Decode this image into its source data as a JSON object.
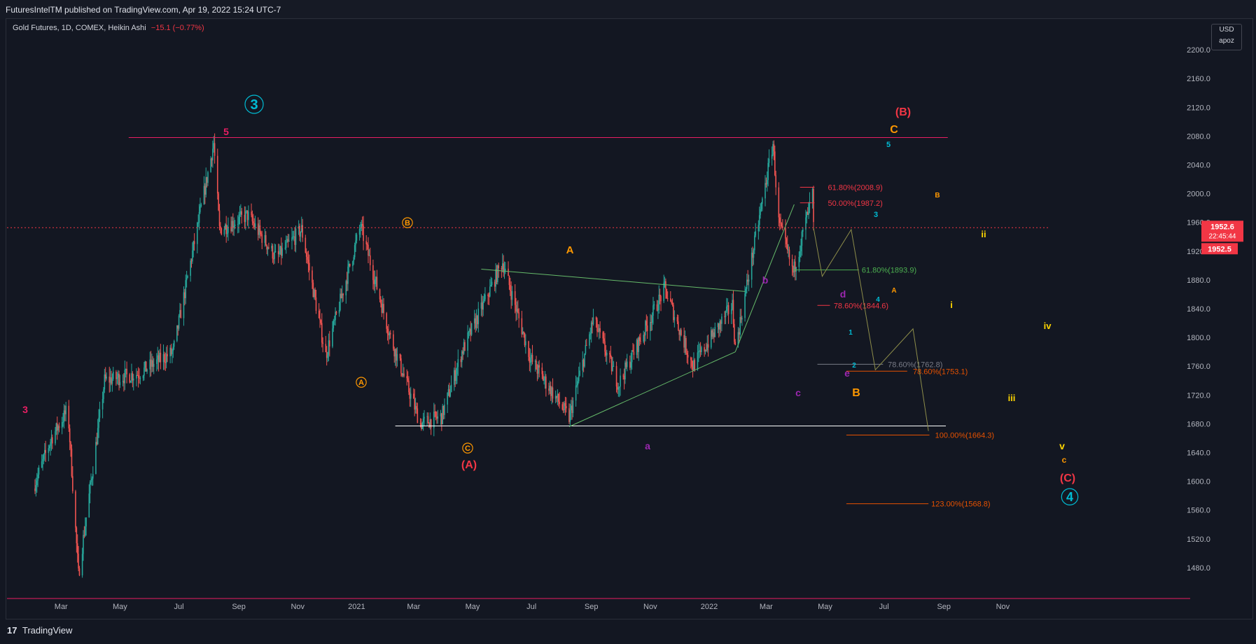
{
  "header": {
    "text": "FuturesIntelTM published on TradingView.com, Apr 19, 2022 15:24 UTC-7"
  },
  "legend": {
    "symbol": "Gold Futures, 1D, COMEX, Heikin Ashi",
    "change": "−15.1 (−0.77%)"
  },
  "currency": {
    "code": "USD",
    "unit": "apoz"
  },
  "footer": {
    "brand": "TradingView",
    "logo": "17"
  },
  "colors": {
    "background": "#131722",
    "up": "#26a69a",
    "down": "#ef5350",
    "price_tag": "#f23645"
  },
  "chart_data": {
    "type": "candlestick",
    "chart_style": "Heikin Ashi",
    "grid": false,
    "ylim": [
      1440,
      2240
    ],
    "y_ticks": [
      2200.0,
      2160.0,
      2120.0,
      2080.0,
      2040.0,
      2000.0,
      1960.0,
      1920.0,
      1880.0,
      1840.0,
      1800.0,
      1760.0,
      1720.0,
      1680.0,
      1640.0,
      1600.0,
      1560.0,
      1520.0,
      1480.0
    ],
    "x_ticks": [
      "Mar",
      "May",
      "Jul",
      "Sep",
      "Nov",
      "2021",
      "Mar",
      "May",
      "Jul",
      "Sep",
      "Nov",
      "2022",
      "Mar",
      "May",
      "Jul",
      "Sep",
      "Nov"
    ],
    "last_price": 1952.6,
    "price_tag": {
      "price": "1952.6",
      "countdown": "22:45:44",
      "prev": "1952.5"
    },
    "fib_levels": [
      {
        "label": "61.80%(2008.9)",
        "value": 2008.9,
        "color": "#f23645"
      },
      {
        "label": "50.00%(1987.2)",
        "value": 1987.2,
        "color": "#f23645"
      },
      {
        "label": "61.80%(1893.9)",
        "value": 1893.9,
        "color": "#4caf50"
      },
      {
        "label": "78.60%(1844.6)",
        "value": 1844.6,
        "color": "#f23645"
      },
      {
        "label": "78.60%(1762.8)",
        "value": 1762.8,
        "color": "#787b86"
      },
      {
        "label": "78.60%(1753.1)",
        "value": 1753.1,
        "color": "#e65100"
      },
      {
        "label": "100.00%(1664.3)",
        "value": 1664.3,
        "color": "#e65100"
      },
      {
        "label": "123.00%(1568.8)",
        "value": 1568.8,
        "color": "#e65100"
      }
    ],
    "wave_labels": [
      {
        "text": "3",
        "circled": true,
        "color": "#00bcd4"
      },
      {
        "text": "5",
        "circled": false,
        "color": "#e91e63"
      },
      {
        "text": "3",
        "circled": false,
        "color": "#e91e63"
      },
      {
        "text": "B",
        "circled": true,
        "color": "#ff9800"
      },
      {
        "text": "A",
        "circled": true,
        "color": "#ff9800"
      },
      {
        "text": "C",
        "circled": true,
        "color": "#ff9800"
      },
      {
        "text": "(A)",
        "circled": false,
        "color": "#f23645"
      },
      {
        "text": "A",
        "circled": false,
        "color": "#ff9800"
      },
      {
        "text": "b",
        "circled": false,
        "color": "#9c27b0"
      },
      {
        "text": "d",
        "circled": false,
        "color": "#9c27b0"
      },
      {
        "text": "a",
        "circled": false,
        "color": "#9c27b0"
      },
      {
        "text": "c",
        "circled": false,
        "color": "#9c27b0"
      },
      {
        "text": "e",
        "circled": false,
        "color": "#9c27b0"
      },
      {
        "text": "B",
        "circled": false,
        "color": "#ff9800"
      },
      {
        "text": "(B)",
        "circled": false,
        "color": "#f23645"
      },
      {
        "text": "C",
        "circled": false,
        "color": "#ff9800"
      },
      {
        "text": "5",
        "circled": false,
        "color": "#00bcd4"
      },
      {
        "text": "3",
        "circled": false,
        "color": "#00bcd4"
      },
      {
        "text": "4",
        "circled": false,
        "color": "#00bcd4"
      },
      {
        "text": "1",
        "circled": false,
        "color": "#00bcd4"
      },
      {
        "text": "2",
        "circled": false,
        "color": "#00bcd4"
      },
      {
        "text": "A",
        "circled": false,
        "color": "#ff9800"
      },
      {
        "text": "B",
        "circled": false,
        "color": "#ff9800"
      },
      {
        "text": "i",
        "circled": false,
        "color": "#ffd600"
      },
      {
        "text": "ii",
        "circled": false,
        "color": "#ffd600"
      },
      {
        "text": "iii",
        "circled": false,
        "color": "#ffd600"
      },
      {
        "text": "iv",
        "circled": false,
        "color": "#ffd600"
      },
      {
        "text": "v",
        "circled": false,
        "color": "#ffd600"
      },
      {
        "text": "c",
        "circled": false,
        "color": "#ff9800"
      },
      {
        "text": "(C)",
        "circled": false,
        "color": "#f23645"
      },
      {
        "text": "4",
        "circled": true,
        "color": "#00bcd4"
      }
    ],
    "horizontal_lines": [
      {
        "value": 2078,
        "color": "#e91e63"
      },
      {
        "value": 1677,
        "color": "#ffffff"
      },
      {
        "value": 1952.6,
        "color": "#f23645",
        "style": "dotted"
      }
    ],
    "price_path": [
      {
        "x": "2020-02-01",
        "y": 1590
      },
      {
        "x": "2020-02-20",
        "y": 1660
      },
      {
        "x": "2020-03-08",
        "y": 1700
      },
      {
        "x": "2020-03-19",
        "y": 1470
      },
      {
        "x": "2020-04-15",
        "y": 1740
      },
      {
        "x": "2020-05-20",
        "y": 1750
      },
      {
        "x": "2020-06-25",
        "y": 1780
      },
      {
        "x": "2020-08-06",
        "y": 2070
      },
      {
        "x": "2020-08-12",
        "y": 1950
      },
      {
        "x": "2020-09-10",
        "y": 1970
      },
      {
        "x": "2020-10-10",
        "y": 1910
      },
      {
        "x": "2020-11-05",
        "y": 1950
      },
      {
        "x": "2020-11-30",
        "y": 1775
      },
      {
        "x": "2021-01-05",
        "y": 1955
      },
      {
        "x": "2021-02-05",
        "y": 1800
      },
      {
        "x": "2021-03-08",
        "y": 1680
      },
      {
        "x": "2021-03-30",
        "y": 1690
      },
      {
        "x": "2021-04-20",
        "y": 1780
      },
      {
        "x": "2021-06-01",
        "y": 1905
      },
      {
        "x": "2021-06-30",
        "y": 1770
      },
      {
        "x": "2021-08-09",
        "y": 1688
      },
      {
        "x": "2021-09-03",
        "y": 1825
      },
      {
        "x": "2021-09-29",
        "y": 1735
      },
      {
        "x": "2021-11-16",
        "y": 1868
      },
      {
        "x": "2021-12-15",
        "y": 1760
      },
      {
        "x": "2022-01-25",
        "y": 1845
      },
      {
        "x": "2022-01-28",
        "y": 1785
      },
      {
        "x": "2022-03-08",
        "y": 2070
      },
      {
        "x": "2022-03-14",
        "y": 1960
      },
      {
        "x": "2022-03-29",
        "y": 1890
      },
      {
        "x": "2022-04-18",
        "y": 2000
      },
      {
        "x": "2022-04-19",
        "y": 1952.6
      }
    ],
    "projection_path": [
      {
        "x": "2022-04-19",
        "y": 1952.6
      },
      {
        "x": "2022-04-28",
        "y": 1885
      },
      {
        "x": "2022-05-28",
        "y": 1950
      },
      {
        "x": "2022-06-22",
        "y": 1755
      },
      {
        "x": "2022-07-31",
        "y": 1812
      },
      {
        "x": "2022-08-16",
        "y": 1670
      }
    ]
  }
}
